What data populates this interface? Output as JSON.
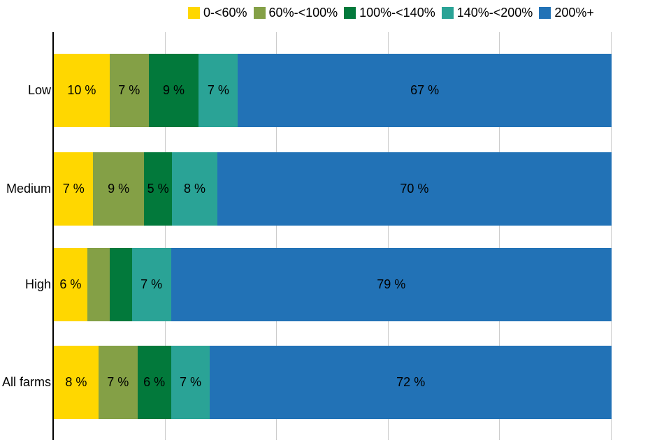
{
  "chart_data": {
    "type": "bar",
    "orientation": "horizontal",
    "stacked": true,
    "unit": "%",
    "title": "",
    "xlabel": "",
    "ylabel": "",
    "categories": [
      "Low",
      "Medium",
      "High",
      "All farms"
    ],
    "series": [
      {
        "name": "0-<60%",
        "color": "#FFD700",
        "values": [
          10,
          7,
          6,
          8
        ],
        "labels": [
          "10 %",
          "7 %",
          "6 %",
          "8 %"
        ]
      },
      {
        "name": "60%-<100%",
        "color": "#84A046",
        "values": [
          7,
          9,
          4,
          7
        ],
        "labels": [
          "7 %",
          "9 %",
          "",
          "7 %"
        ]
      },
      {
        "name": "100%-<140%",
        "color": "#02793B",
        "values": [
          9,
          5,
          4,
          6
        ],
        "labels": [
          "9 %",
          "5 %",
          "",
          "6 %"
        ]
      },
      {
        "name": "140%-<200%",
        "color": "#2AA396",
        "values": [
          7,
          8,
          7,
          7
        ],
        "labels": [
          "7 %",
          "8 %",
          "7 %",
          "7 %"
        ]
      },
      {
        "name": "200%+",
        "color": "#2272B6",
        "values": [
          67,
          70,
          79,
          72
        ],
        "labels": [
          "67 %",
          "70 %",
          "79 %",
          "72 %"
        ]
      }
    ],
    "xlim": [
      0,
      100
    ],
    "gridlines_pct": [
      20,
      40,
      60,
      80,
      100
    ],
    "grid": true,
    "legend_position": "top"
  },
  "colors": {
    "axis": "#000000",
    "gridline": "#CCCCCC",
    "label_text": "#000000",
    "background": "#FFFFFF"
  }
}
